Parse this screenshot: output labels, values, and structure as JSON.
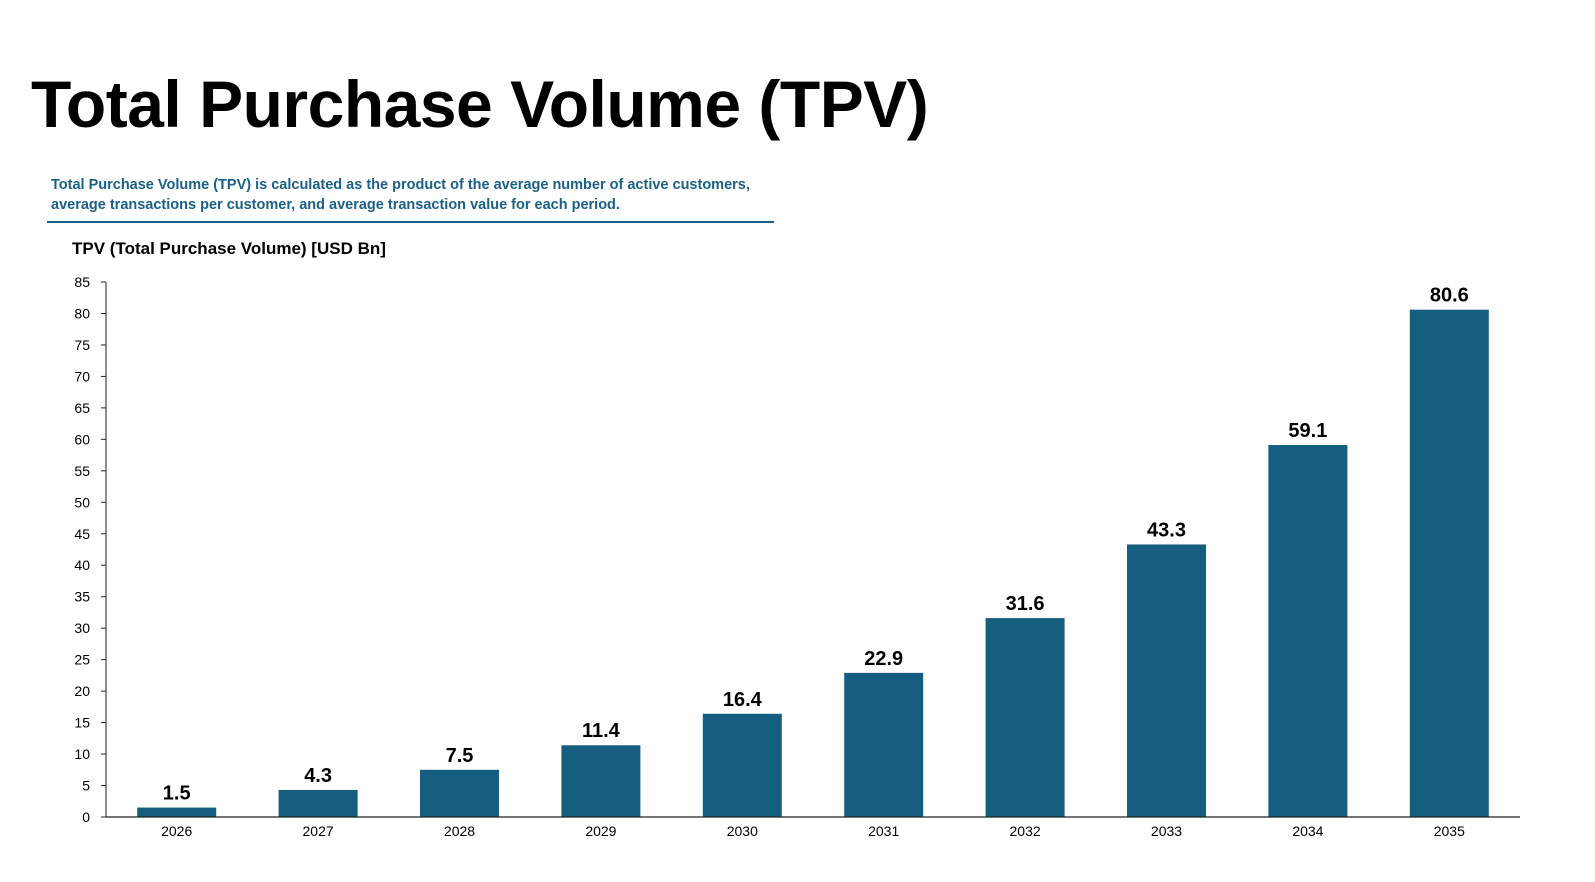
{
  "title": "Total Purchase Volume (TPV)",
  "description": "Total Purchase Volume (TPV) is calculated as the product of the average number of active customers, average transactions per customer, and average transaction value for each period.",
  "colors": {
    "bar": "#165e80",
    "description": "#1b6088",
    "axis": "#000000"
  },
  "chart_data": {
    "type": "bar",
    "title": "TPV (Total Purchase Volume) [USD Bn]",
    "xlabel": "",
    "ylabel": "",
    "categories": [
      "2026",
      "2027",
      "2028",
      "2029",
      "2030",
      "2031",
      "2032",
      "2033",
      "2034",
      "2035"
    ],
    "values": [
      1.5,
      4.3,
      7.5,
      11.4,
      16.4,
      22.9,
      31.6,
      43.3,
      59.1,
      80.6
    ],
    "data_labels": [
      "1.5",
      "4.3",
      "7.5",
      "11.4",
      "16.4",
      "22.9",
      "31.6",
      "43.3",
      "59.1",
      "80.6"
    ],
    "ylim": [
      0,
      85
    ],
    "yticks": [
      0,
      5,
      10,
      15,
      20,
      25,
      30,
      35,
      40,
      45,
      50,
      55,
      60,
      65,
      70,
      75,
      80,
      85
    ],
    "grid": false,
    "legend": "none"
  }
}
